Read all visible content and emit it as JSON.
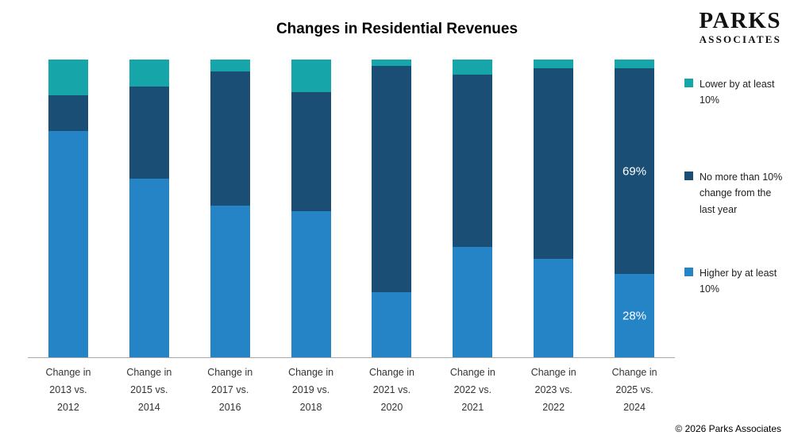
{
  "title": "Changes in Residential Revenues",
  "logo": {
    "line1": "PARKS",
    "line2": "ASSOCIATES"
  },
  "footer": {
    "copyright": "© 2026 Parks Associates"
  },
  "legend": {
    "position": "right",
    "items": [
      {
        "label": "Lower by at least 10%",
        "color": "#16a5a9"
      },
      {
        "label": "No more than 10% change from the last year",
        "color": "#1a4e74"
      },
      {
        "label": "Higher by at least 10%",
        "color": "#2484c6"
      }
    ]
  },
  "chart_data": {
    "type": "bar",
    "stacked": true,
    "title": "Changes in Residential Revenues",
    "xlabel": "",
    "ylabel": "",
    "ylim": [
      0,
      100
    ],
    "grid": false,
    "legend_position": "right",
    "categories": [
      "Change in\n2013 vs.\n2012",
      "Change in\n2015 vs.\n2014",
      "Change in\n2017 vs.\n2016",
      "Change in\n2019 vs.\n2018",
      "Change in\n2021 vs.\n2020",
      "Change in\n2022 vs.\n2021",
      "Change in\n2023 vs.\n2022",
      "Change in\n2025 vs.\n2024"
    ],
    "series": [
      {
        "name": "Higher by at least 10%",
        "color": "#2484c6",
        "values": [
          76,
          60,
          51,
          49,
          22,
          37,
          33,
          28
        ]
      },
      {
        "name": "No more than 10% change from the last year",
        "color": "#1a4e74",
        "values": [
          12,
          31,
          45,
          40,
          76,
          58,
          64,
          69
        ]
      },
      {
        "name": "Lower by at least 10%",
        "color": "#16a5a9",
        "values": [
          12,
          9,
          4,
          11,
          2,
          5,
          3,
          3
        ]
      }
    ],
    "data_labels": [
      {
        "category_index": 7,
        "series": "No more than 10% change from the last year",
        "text": "69%"
      },
      {
        "category_index": 7,
        "series": "Higher by at least 10%",
        "text": "28%"
      }
    ]
  }
}
